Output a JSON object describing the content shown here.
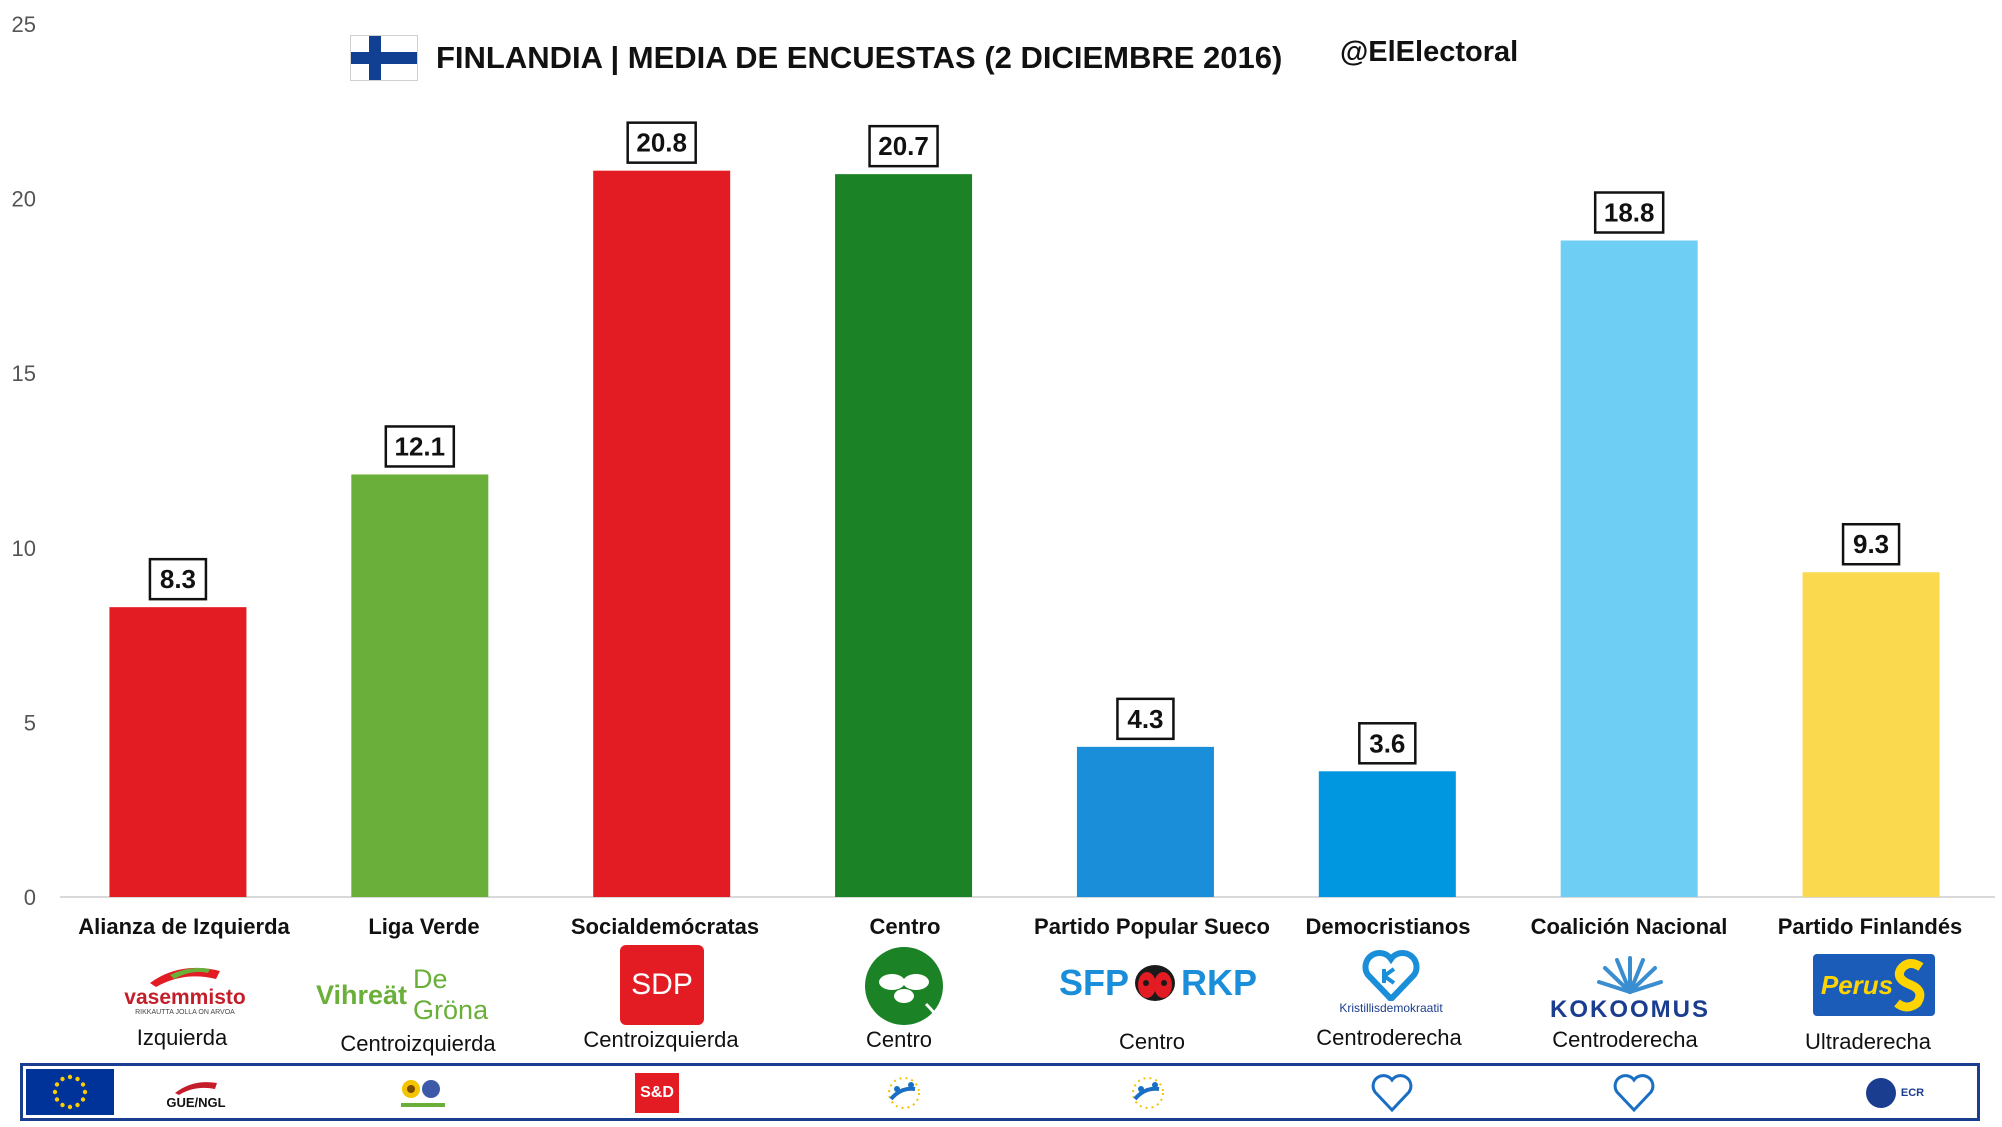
{
  "chart_data": {
    "type": "bar",
    "title": "FINLANDIA | MEDIA DE ENCUESTAS (2 DICIEMBRE 2016)",
    "handle": "@ElElectoral",
    "ylim": [
      0,
      25
    ],
    "yticks": [
      0,
      5,
      10,
      15,
      20,
      25
    ],
    "grid": false,
    "categories": [
      "Alianza de Izquierda",
      "Liga Verde",
      "Socialdemócratas",
      "Centro",
      "Partido Popular Sueco",
      "Democristianos",
      "Coalición Nacional",
      "Partido Finlandés"
    ],
    "values": [
      8.3,
      12.1,
      20.8,
      20.7,
      4.3,
      3.6,
      18.8,
      9.3
    ],
    "value_labels": [
      "8.3",
      "12.1",
      "20.8",
      "20.7",
      "4.3",
      "3.6",
      "18.8",
      "9.3"
    ],
    "colors": [
      "#e31b23",
      "#6aaf3a",
      "#e31b23",
      "#1b8326",
      "#1a8ed9",
      "#0096e0",
      "#6fcef4",
      "#fbd94f"
    ],
    "ideology": [
      "Izquierda",
      "Centroizquierda",
      "Centroizquierda",
      "Centro",
      "Centro",
      "Centroderecha",
      "Centroderecha",
      "Ultraderecha"
    ]
  },
  "logos": {
    "vasemmisto": "vasemmisto",
    "vasemmisto_sub": "RIKKAUTTA JOLLA ON ARVOA",
    "vihreat_a": "Vihreät",
    "vihreat_b": "De Gröna",
    "sdp": "SDP",
    "sfp": "SFP",
    "rkp": "RKP",
    "kd": "Kristillisdemokraatit",
    "kokoomus": "KOKOOMUS",
    "perus": "Perus"
  },
  "eu_groups": [
    "GUE/NGL",
    "Greens/EFA",
    "S&D",
    "EPP",
    "EPP",
    "EPP",
    "EPP",
    "ECR"
  ],
  "eu_group_labels": {
    "gue": "GUE/NGL",
    "sd": "S&D",
    "ecr": "ECR"
  },
  "icons": {
    "flag": "finland-flag-icon",
    "eu": "eu-flag-icon"
  }
}
